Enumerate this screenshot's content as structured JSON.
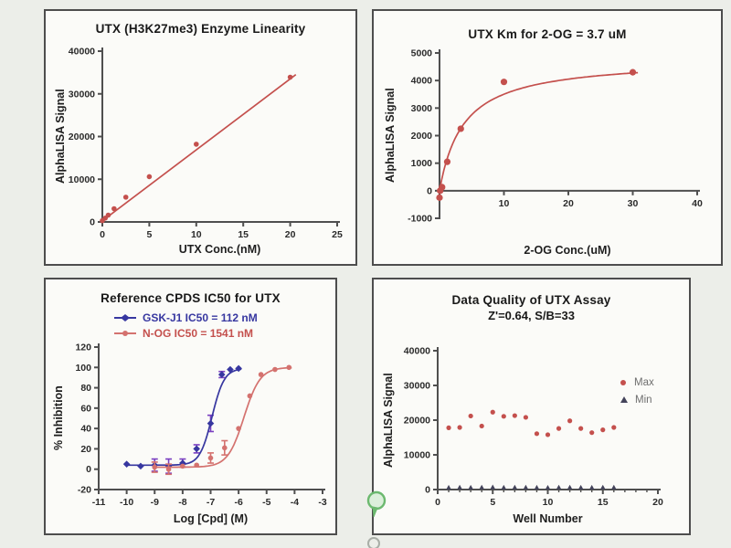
{
  "page": {
    "background": "#eceee9",
    "panel_background": "#fbfbf8",
    "panel_border": "#4d4d4d"
  },
  "colors": {
    "red": "#c4504d",
    "salmon": "#d4726f",
    "blue": "#3737a0",
    "purple": "#7a3fc1",
    "dark": "#43435a",
    "axis": "#4f4f4f",
    "tick_text": "#2a2a2a",
    "legend_text": "#6e6e6e",
    "green_icon": "#6cb96f",
    "green_icon_fill": "#dcefdb",
    "gray_dot": "#a9aea7"
  },
  "chart_data": [
    {
      "type": "scatter",
      "title": "UTX (H3K27me3) Enzyme Linearity",
      "xlabel": "UTX Conc.(nM)",
      "ylabel": "AlphaLISA Signal",
      "xlim": [
        0,
        25
      ],
      "ylim": [
        0,
        40000
      ],
      "xticks": [
        0,
        5,
        10,
        15,
        20,
        25
      ],
      "yticks": [
        0,
        10000,
        20000,
        30000,
        40000
      ],
      "grid": false,
      "legend_position": "none",
      "series": [
        {
          "name": "alphalisa-signal",
          "kind": "points",
          "marker": "circle",
          "color": "red",
          "size": 2.8,
          "points": [
            [
              0,
              300
            ],
            [
              0.31,
              900
            ],
            [
              0.63,
              1600
            ],
            [
              1.25,
              3100
            ],
            [
              2.5,
              5800
            ],
            [
              5,
              10600
            ],
            [
              10,
              18200
            ],
            [
              20,
              33900
            ]
          ]
        },
        {
          "name": "linear-fit",
          "kind": "line",
          "color": "red",
          "x1": 0,
          "y1": 250,
          "x2": 20.6,
          "y2": 34500
        }
      ]
    },
    {
      "type": "scatter",
      "title": "UTX Km for 2-OG = 3.7 uM",
      "xlabel": "2-OG Conc.(uM)",
      "ylabel": "AlphaLISA Signal",
      "xlim": [
        0,
        40
      ],
      "ylim": [
        -1000,
        5000
      ],
      "xticks": [
        10,
        20,
        30,
        40
      ],
      "yticks": [
        -1000,
        0,
        1000,
        2000,
        3000,
        4000,
        5000
      ],
      "x_axis_at": 0,
      "grid": false,
      "legend_position": "none",
      "series": [
        {
          "name": "alphalisa-signal",
          "kind": "points",
          "marker": "circle",
          "color": "red",
          "size": 3.6,
          "points": [
            [
              0,
              -250
            ],
            [
              0.1,
              0
            ],
            [
              0.4,
              130
            ],
            [
              1.2,
              1050
            ],
            [
              3.3,
              2250
            ],
            [
              10,
              3950
            ],
            [
              30,
              4300
            ]
          ]
        },
        {
          "name": "michaelis-menten-fit",
          "kind": "fit-mm",
          "color": "red",
          "vmax": 4800,
          "km": 3.7,
          "xmin": 0,
          "xmax": 30.8
        }
      ]
    },
    {
      "type": "scatter",
      "title": "Reference CPDS IC50 for UTX",
      "xlabel": "Log [Cpd] (M)",
      "ylabel": "% Inhibition",
      "xlim": [
        -11,
        -3
      ],
      "ylim": [
        -20,
        120
      ],
      "xticks": [
        -11,
        -10,
        -9,
        -8,
        -7,
        -6,
        -5,
        -4,
        -3
      ],
      "yticks": [
        -20,
        0,
        20,
        40,
        60,
        80,
        100,
        120
      ],
      "grid": false,
      "legend_position": "top-left",
      "series": [
        {
          "name": "gsk-j1",
          "label": "GSK-J1 IC50 = 112 nM",
          "kind": "points",
          "marker": "diamond",
          "color": "blue",
          "errColor": "purple",
          "size": 2.6,
          "points": [
            [
              -10,
              5,
              0
            ],
            [
              -9.5,
              3,
              0
            ],
            [
              -9,
              4,
              6
            ],
            [
              -8.5,
              3,
              7
            ],
            [
              -8,
              6,
              4
            ],
            [
              -7.5,
              20,
              4
            ],
            [
              -7,
              45,
              8
            ],
            [
              -6.6,
              93,
              3
            ],
            [
              -6.3,
              98,
              0
            ],
            [
              -6,
              99,
              0
            ]
          ]
        },
        {
          "name": "gsk-j1-fit",
          "kind": "fit-hill",
          "color": "blue",
          "bottom": 4,
          "top": 99,
          "logic50": -6.95,
          "slope": 2,
          "xmin": -10,
          "xmax": -5.9
        },
        {
          "name": "n-og",
          "label": "N-OG IC50 = 1541 nM",
          "kind": "points",
          "marker": "circle",
          "color": "salmon",
          "errColor": "salmon",
          "size": 2.8,
          "points": [
            [
              -9,
              2,
              5
            ],
            [
              -8.5,
              0,
              5
            ],
            [
              -8,
              3,
              0
            ],
            [
              -7.5,
              4,
              0
            ],
            [
              -7,
              11,
              5
            ],
            [
              -6.5,
              21,
              7
            ],
            [
              -6,
              40,
              0
            ],
            [
              -5.6,
              72,
              0
            ],
            [
              -5.2,
              93,
              0
            ],
            [
              -4.7,
              98,
              0
            ],
            [
              -4.2,
              100,
              0
            ]
          ]
        },
        {
          "name": "n-og-fit",
          "kind": "fit-hill",
          "color": "salmon",
          "bottom": 2,
          "top": 100,
          "logic50": -5.81,
          "slope": 1.5,
          "xmin": -9,
          "xmax": -4.1
        }
      ]
    },
    {
      "type": "scatter",
      "title": "Data Quality of UTX Assay",
      "subtitle": "Z'=0.64, S/B=33",
      "xlabel": "Well Number",
      "ylabel": "AlphaLISA Signal",
      "xlim": [
        0,
        20
      ],
      "ylim": [
        0,
        40000
      ],
      "xticks": [
        0,
        5,
        10,
        15,
        20
      ],
      "xminor": 1,
      "yticks": [
        0,
        10000,
        20000,
        30000,
        40000
      ],
      "grid": false,
      "legend_position": "right",
      "series": [
        {
          "name": "max",
          "label": "Max",
          "kind": "points",
          "marker": "circle",
          "color": "red",
          "size": 2.6,
          "points": [
            [
              1,
              17800
            ],
            [
              2,
              17900
            ],
            [
              3,
              21200
            ],
            [
              4,
              18300
            ],
            [
              5,
              22300
            ],
            [
              6,
              21100
            ],
            [
              7,
              21300
            ],
            [
              8,
              20800
            ],
            [
              9,
              16100
            ],
            [
              10,
              15800
            ],
            [
              11,
              17600
            ],
            [
              12,
              19800
            ],
            [
              13,
              17600
            ],
            [
              14,
              16400
            ],
            [
              15,
              17200
            ],
            [
              16,
              17900
            ]
          ]
        },
        {
          "name": "min",
          "label": "Min",
          "kind": "points",
          "marker": "triangle",
          "color": "dark",
          "size": 2.8,
          "points": [
            [
              1,
              600
            ],
            [
              2,
              650
            ],
            [
              3,
              620
            ],
            [
              4,
              640
            ],
            [
              5,
              700
            ],
            [
              6,
              620
            ],
            [
              7,
              650
            ],
            [
              8,
              630
            ],
            [
              9,
              600
            ],
            [
              10,
              580
            ],
            [
              11,
              640
            ],
            [
              12,
              660
            ],
            [
              13,
              620
            ],
            [
              14,
              600
            ],
            [
              15,
              650
            ],
            [
              16,
              630
            ]
          ]
        }
      ]
    }
  ]
}
